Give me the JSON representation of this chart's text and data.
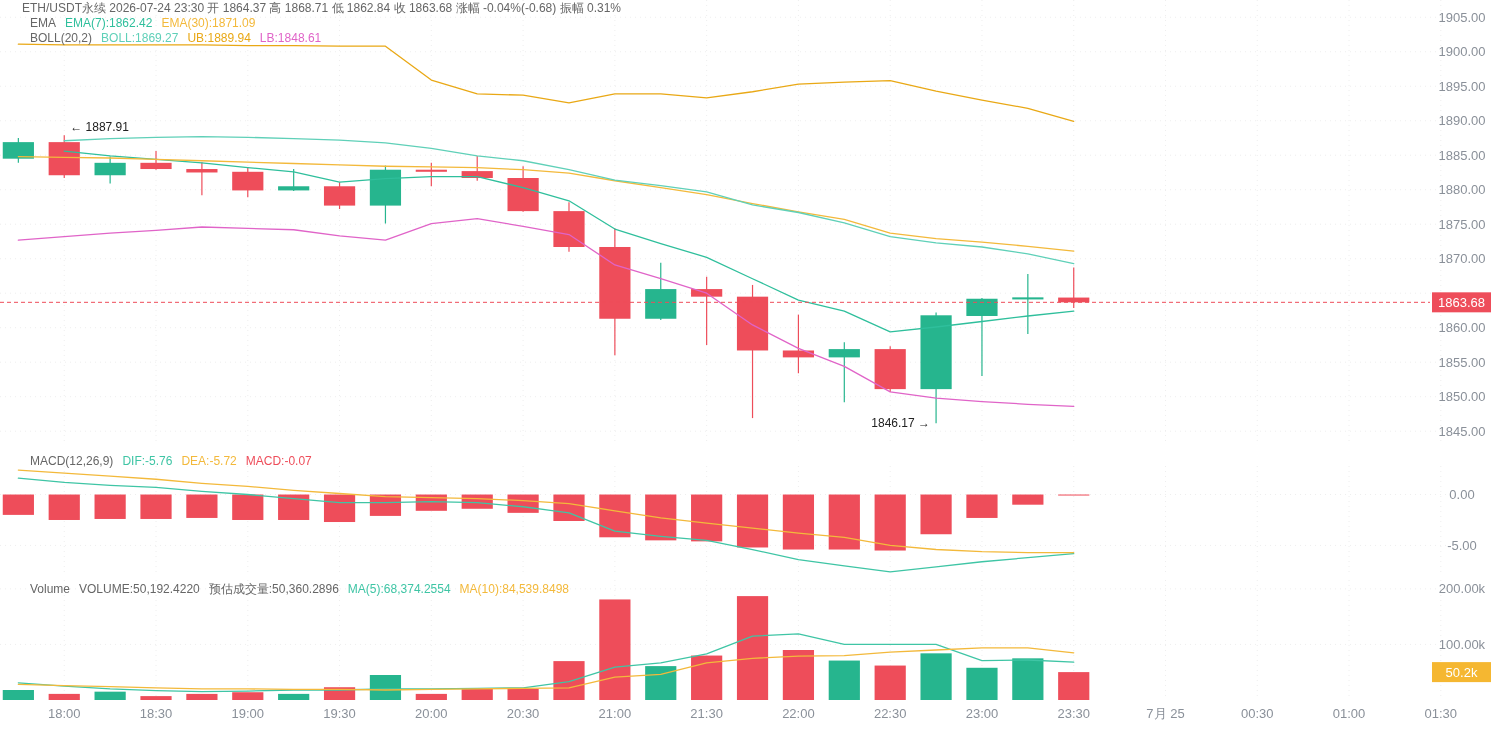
{
  "chart_data": [
    {
      "type": "candlestick",
      "title": "ETH/USDT永续  2026-07-24 23:30  开 1864.37  高 1868.71  低 1862.84  收 1863.68  涨幅 -0.04%(-0.68)  振幅 0.31%",
      "x": [
        "2026-07-24T17:45",
        "2026-07-24T18:00",
        "2026-07-24T18:15",
        "2026-07-24T18:30",
        "2026-07-24T18:45",
        "2026-07-24T19:00",
        "2026-07-24T19:15",
        "2026-07-24T19:30",
        "2026-07-24T19:45",
        "2026-07-24T20:00",
        "2026-07-24T20:15",
        "2026-07-24T20:30",
        "2026-07-24T20:45",
        "2026-07-24T21:00",
        "2026-07-24T21:15",
        "2026-07-24T21:30",
        "2026-07-24T21:45",
        "2026-07-24T22:00",
        "2026-07-24T22:15",
        "2026-07-24T22:30",
        "2026-07-24T22:45",
        "2026-07-24T23:00",
        "2026-07-24T23:15",
        "2026-07-24T23:30"
      ],
      "ohlc": [
        [
          1884.5,
          1887.5,
          1883.9,
          1886.9
        ],
        [
          1886.9,
          1887.91,
          1881.7,
          1882.1
        ],
        [
          1882.1,
          1884.8,
          1880.9,
          1883.9
        ],
        [
          1883.9,
          1885.6,
          1882.9,
          1883.0
        ],
        [
          1883.0,
          1884.0,
          1879.2,
          1882.5
        ],
        [
          1882.6,
          1883.3,
          1878.9,
          1879.9
        ],
        [
          1879.9,
          1883.0,
          1879.8,
          1880.5
        ],
        [
          1880.5,
          1881.1,
          1877.2,
          1877.7
        ],
        [
          1877.7,
          1883.5,
          1875.1,
          1882.9
        ],
        [
          1882.9,
          1883.9,
          1880.5,
          1882.6
        ],
        [
          1882.7,
          1884.9,
          1881.3,
          1881.7
        ],
        [
          1881.7,
          1883.4,
          1876.8,
          1876.9
        ],
        [
          1876.9,
          1878.2,
          1871.0,
          1871.7
        ],
        [
          1871.7,
          1874.4,
          1856.0,
          1861.3
        ],
        [
          1861.3,
          1869.4,
          1861.1,
          1865.6
        ],
        [
          1865.6,
          1867.4,
          1857.5,
          1864.5
        ],
        [
          1864.5,
          1866.2,
          1846.9,
          1856.7
        ],
        [
          1856.7,
          1861.9,
          1853.4,
          1855.7
        ],
        [
          1855.7,
          1857.9,
          1849.2,
          1856.9
        ],
        [
          1856.9,
          1857.3,
          1850.7,
          1851.1
        ],
        [
          1851.1,
          1862.2,
          1846.17,
          1861.8
        ],
        [
          1861.7,
          1864.3,
          1853.0,
          1864.2
        ],
        [
          1864.1,
          1867.8,
          1859.1,
          1864.4
        ],
        [
          1864.37,
          1868.71,
          1862.84,
          1863.68
        ]
      ],
      "colors": [
        "#26b58e",
        "#ee4d5a",
        "#26b58e",
        "#ee4d5a",
        "#ee4d5a",
        "#ee4d5a",
        "#26b58e",
        "#ee4d5a",
        "#26b58e",
        "#ee4d5a",
        "#ee4d5a",
        "#ee4d5a",
        "#ee4d5a",
        "#ee4d5a",
        "#26b58e",
        "#ee4d5a",
        "#ee4d5a",
        "#ee4d5a",
        "#26b58e",
        "#ee4d5a",
        "#26b58e",
        "#26b58e",
        "#26b58e",
        "#ee4d5a"
      ],
      "series": [
        {
          "name": "EMA(7):1862.42",
          "type": "line",
          "color": "#2fbf9c",
          "values": [
            null,
            1885.6,
            1884.9,
            1884.4,
            1883.9,
            1883.2,
            1882.6,
            1881.1,
            1881.6,
            1881.9,
            1881.9,
            1880.3,
            1878.4,
            1874.3,
            1872.2,
            1870.2,
            1867.1,
            1864.0,
            1862.4,
            1859.4,
            1860.1,
            1860.9,
            1861.7,
            1862.4
          ]
        },
        {
          "name": "EMA(30):1871.09",
          "type": "line",
          "color": "#f3b93b",
          "values": [
            1884.8,
            1884.7,
            1884.6,
            1884.4,
            1884.2,
            1884.0,
            1883.8,
            1883.6,
            1883.4,
            1883.3,
            1883.2,
            1882.9,
            1882.4,
            1881.3,
            1880.3,
            1879.3,
            1878.0,
            1876.8,
            1875.7,
            1873.7,
            1872.9,
            1872.4,
            1871.8,
            1871.1
          ]
        },
        {
          "name": "BOLL:1869.27",
          "type": "line",
          "color": "#5fd0b8",
          "values": [
            null,
            1887.1,
            1887.4,
            1887.6,
            1887.7,
            1887.6,
            1887.4,
            1887.2,
            1886.8,
            1886.0,
            1884.9,
            1884.2,
            1882.9,
            1881.4,
            1880.6,
            1879.7,
            1877.8,
            1876.7,
            1875.2,
            1873.2,
            1872.3,
            1871.7,
            1870.7,
            1869.3
          ]
        },
        {
          "name": "UB:1889.94",
          "type": "line",
          "color": "#e9a815",
          "values": [
            1901.1,
            1901.0,
            1901.0,
            1901.0,
            1901.0,
            1900.9,
            1900.9,
            1900.8,
            1900.8,
            1895.9,
            1893.9,
            1893.7,
            1892.6,
            1893.9,
            1893.9,
            1893.3,
            1894.2,
            1895.3,
            1895.6,
            1895.8,
            1894.3,
            1893.0,
            1891.8,
            1889.9
          ]
        },
        {
          "name": "LB:1848.61",
          "type": "line",
          "color": "#e064c8",
          "values": [
            1872.7,
            1873.2,
            1873.7,
            1874.1,
            1874.6,
            1874.4,
            1874.2,
            1873.3,
            1872.7,
            1875.1,
            1875.8,
            1874.7,
            1873.5,
            1869.1,
            1867.1,
            1865.0,
            1860.4,
            1857.0,
            1854.4,
            1850.7,
            1849.8,
            1849.3,
            1848.9,
            1848.6
          ]
        }
      ],
      "annotations": [
        "EMA",
        "BOLL(20,2)",
        {
          "text": "← 1887.91",
          "x": "2026-07-24T18:00",
          "y": 1887.91
        },
        {
          "text": "1846.17 →",
          "x": "2026-07-24T22:45",
          "y": 1846.17
        }
      ],
      "ref_lines": [
        {
          "axis": "y",
          "value": 1863.68,
          "label": "1863.68",
          "color": "#ee4d5a",
          "line_style": "dashed"
        }
      ],
      "xlim": [
        "2026-07-24T17:39",
        "2026-07-25T01:33"
      ],
      "xticks": [
        {
          "value": "2026-07-24T18:00",
          "label": null
        },
        {
          "value": "2026-07-24T18:30",
          "label": null
        },
        {
          "value": "2026-07-24T19:00",
          "label": null
        },
        {
          "value": "2026-07-24T19:30",
          "label": null
        },
        {
          "value": "2026-07-24T20:00",
          "label": null
        },
        {
          "value": "2026-07-24T20:30",
          "label": null
        },
        {
          "value": "2026-07-24T21:00",
          "label": null
        },
        {
          "value": "2026-07-24T21:30",
          "label": null
        },
        {
          "value": "2026-07-24T22:00",
          "label": null
        },
        {
          "value": "2026-07-24T22:30",
          "label": null
        },
        {
          "value": "2026-07-24T23:00",
          "label": null
        },
        {
          "value": "2026-07-24T23:30",
          "label": null
        },
        {
          "value": "2026-07-25T00:00",
          "label": null
        },
        {
          "value": "2026-07-25T00:30",
          "label": null
        },
        {
          "value": "2026-07-25T01:00",
          "label": null
        },
        {
          "value": "2026-07-25T01:30",
          "label": null
        }
      ],
      "ylim": [
        1843,
        1907.5
      ],
      "yticks": [
        {
          "value": 1845,
          "label": "1845.00"
        },
        {
          "value": 1850,
          "label": "1850.00"
        },
        {
          "value": 1855,
          "label": "1855.00"
        },
        {
          "value": 1860,
          "label": "1860.00"
        },
        {
          "value": 1865,
          "label": null
        },
        {
          "value": 1870,
          "label": "1870.00"
        },
        {
          "value": 1875,
          "label": "1875.00"
        },
        {
          "value": 1880,
          "label": "1880.00"
        },
        {
          "value": 1885,
          "label": "1885.00"
        },
        {
          "value": 1890,
          "label": "1890.00"
        },
        {
          "value": 1895,
          "label": "1895.00"
        },
        {
          "value": 1900,
          "label": "1900.00"
        },
        {
          "value": 1905,
          "label": "1905.00"
        }
      ],
      "tick_labels": "y",
      "grid": true,
      "legend": "top left"
    },
    {
      "type": "bar",
      "x": [
        "2026-07-24T17:45",
        "2026-07-24T18:00",
        "2026-07-24T18:15",
        "2026-07-24T18:30",
        "2026-07-24T18:45",
        "2026-07-24T19:00",
        "2026-07-24T19:15",
        "2026-07-24T19:30",
        "2026-07-24T19:45",
        "2026-07-24T20:00",
        "2026-07-24T20:15",
        "2026-07-24T20:30",
        "2026-07-24T20:45",
        "2026-07-24T21:00",
        "2026-07-24T21:15",
        "2026-07-24T21:30",
        "2026-07-24T21:45",
        "2026-07-24T22:00",
        "2026-07-24T22:15",
        "2026-07-24T22:30",
        "2026-07-24T22:45",
        "2026-07-24T23:00",
        "2026-07-24T23:15",
        "2026-07-24T23:30"
      ],
      "series": [
        {
          "name": "DIF:-5.76",
          "type": "line",
          "color": "#3fc5a5",
          "values": [
            1.6,
            1.2,
            0.9,
            0.7,
            0.3,
            0,
            -0.4,
            -0.8,
            -0.8,
            -0.7,
            -0.8,
            -1.2,
            -1.8,
            -3.6,
            -4.1,
            -4.5,
            -5.4,
            -6.4,
            -7.0,
            -7.6,
            -7.1,
            -6.6,
            -6.2,
            -5.8
          ]
        },
        {
          "name": "DEA:-5.72",
          "type": "line",
          "color": "#f3b93b",
          "values": [
            2.4,
            2.1,
            1.8,
            1.5,
            1.1,
            0.8,
            0.4,
            0.1,
            -0.2,
            -0.3,
            -0.4,
            -0.6,
            -0.9,
            -1.6,
            -2.3,
            -2.8,
            -3.3,
            -3.8,
            -4.2,
            -5.0,
            -5.4,
            -5.6,
            -5.7,
            -5.7
          ]
        },
        {
          "name": "MACD:-0.07",
          "type": "bar",
          "color": "#ee4d5a",
          "values": [
            -2.0,
            -2.5,
            -2.4,
            -2.4,
            -2.3,
            -2.5,
            -2.5,
            -2.7,
            -2.1,
            -1.6,
            -1.4,
            -1.8,
            -2.6,
            -4.2,
            -4.5,
            -4.6,
            -5.2,
            -5.4,
            -5.4,
            -5.5,
            -3.9,
            -2.3,
            -1.0,
            -0.1
          ]
        }
      ],
      "annotations": [
        "MACD(12,26,9)"
      ],
      "xlim": [
        "2026-07-24T17:39",
        "2026-07-25T01:33"
      ],
      "xticks": [
        {
          "value": "2026-07-24T18:00",
          "label": null
        },
        {
          "value": "2026-07-24T18:30",
          "label": null
        },
        {
          "value": "2026-07-24T19:00",
          "label": null
        },
        {
          "value": "2026-07-24T19:30",
          "label": null
        },
        {
          "value": "2026-07-24T20:00",
          "label": null
        },
        {
          "value": "2026-07-24T20:30",
          "label": null
        },
        {
          "value": "2026-07-24T21:00",
          "label": null
        },
        {
          "value": "2026-07-24T21:30",
          "label": null
        },
        {
          "value": "2026-07-24T22:00",
          "label": null
        },
        {
          "value": "2026-07-24T22:30",
          "label": null
        },
        {
          "value": "2026-07-24T23:00",
          "label": null
        },
        {
          "value": "2026-07-24T23:30",
          "label": null
        },
        {
          "value": "2026-07-25T00:00",
          "label": null
        },
        {
          "value": "2026-07-25T00:30",
          "label": null
        },
        {
          "value": "2026-07-25T01:00",
          "label": null
        },
        {
          "value": "2026-07-25T01:30",
          "label": null
        }
      ],
      "ylim": [
        -8,
        2.8
      ],
      "yticks": [
        {
          "value": 0,
          "label": "0.00"
        },
        {
          "value": -5,
          "label": "-5.00"
        }
      ],
      "tick_labels": "y",
      "grid": true,
      "legend": "top left"
    },
    {
      "type": "bar",
      "x": [
        "2026-07-24T17:45",
        "2026-07-24T18:00",
        "2026-07-24T18:15",
        "2026-07-24T18:30",
        "2026-07-24T18:45",
        "2026-07-24T19:00",
        "2026-07-24T19:15",
        "2026-07-24T19:30",
        "2026-07-24T19:45",
        "2026-07-24T20:00",
        "2026-07-24T20:15",
        "2026-07-24T20:30",
        "2026-07-24T20:45",
        "2026-07-24T21:00",
        "2026-07-24T21:15",
        "2026-07-24T21:30",
        "2026-07-24T21:45",
        "2026-07-24T22:00",
        "2026-07-24T22:15",
        "2026-07-24T22:30",
        "2026-07-24T22:45",
        "2026-07-24T23:00",
        "2026-07-24T23:15",
        "2026-07-24T23:30"
      ],
      "values": [
        18,
        11,
        15,
        7,
        11,
        14,
        11,
        23,
        45,
        11,
        20,
        20,
        70,
        181,
        61,
        80,
        187,
        90,
        71,
        62,
        84,
        58,
        75,
        50.2
      ],
      "colors": [
        "#26b58e",
        "#ee4d5a",
        "#26b58e",
        "#ee4d5a",
        "#ee4d5a",
        "#ee4d5a",
        "#26b58e",
        "#ee4d5a",
        "#26b58e",
        "#ee4d5a",
        "#ee4d5a",
        "#ee4d5a",
        "#ee4d5a",
        "#ee4d5a",
        "#26b58e",
        "#ee4d5a",
        "#ee4d5a",
        "#ee4d5a",
        "#26b58e",
        "#ee4d5a",
        "#26b58e",
        "#26b58e",
        "#26b58e",
        "#ee4d5a"
      ],
      "series": [
        {
          "name": "MA(5):68,374.2554",
          "type": "line",
          "color": "#3fc5a5",
          "values": [
            31,
            25,
            20,
            17,
            15,
            16,
            18,
            18,
            20,
            20,
            21,
            22,
            33,
            59,
            67,
            83,
            115,
            119,
            100,
            100,
            100,
            71,
            72,
            68
          ]
        },
        {
          "name": "MA(10):84,539.8498",
          "type": "line",
          "color": "#f3b93b",
          "values": [
            28,
            26,
            24,
            22,
            20,
            20,
            19,
            19,
            18,
            19,
            20,
            21,
            22,
            41,
            46,
            67,
            75,
            79,
            80,
            86,
            90,
            94,
            94,
            85
          ]
        }
      ],
      "annotations": [
        "Volume",
        "VOLUME:50,192.4220",
        "预估成交量:50,360.2896",
        "50.2k"
      ],
      "xlim": [
        "2026-07-24T17:39",
        "2026-07-25T01:33"
      ],
      "xticks": [
        {
          "value": "2026-07-24T18:00",
          "label": "18:00"
        },
        {
          "value": "2026-07-24T18:30",
          "label": "18:30"
        },
        {
          "value": "2026-07-24T19:00",
          "label": "19:00"
        },
        {
          "value": "2026-07-24T19:30",
          "label": "19:30"
        },
        {
          "value": "2026-07-24T20:00",
          "label": "20:00"
        },
        {
          "value": "2026-07-24T20:30",
          "label": "20:30"
        },
        {
          "value": "2026-07-24T21:00",
          "label": "21:00"
        },
        {
          "value": "2026-07-24T21:30",
          "label": "21:30"
        },
        {
          "value": "2026-07-24T22:00",
          "label": "22:00"
        },
        {
          "value": "2026-07-24T22:30",
          "label": "22:30"
        },
        {
          "value": "2026-07-24T23:00",
          "label": "23:00"
        },
        {
          "value": "2026-07-24T23:30",
          "label": "23:30"
        },
        {
          "value": "2026-07-25T00:00",
          "label": "7月 25"
        },
        {
          "value": "2026-07-25T00:30",
          "label": "00:30"
        },
        {
          "value": "2026-07-25T01:00",
          "label": "01:00"
        },
        {
          "value": "2026-07-25T01:30",
          "label": "01:30"
        }
      ],
      "ylim": [
        0,
        216
      ],
      "yticks": [
        {
          "value": 100,
          "label": "100.00k"
        },
        {
          "value": 200,
          "label": "200.00k"
        }
      ],
      "grid": true,
      "legend": "top left"
    }
  ]
}
